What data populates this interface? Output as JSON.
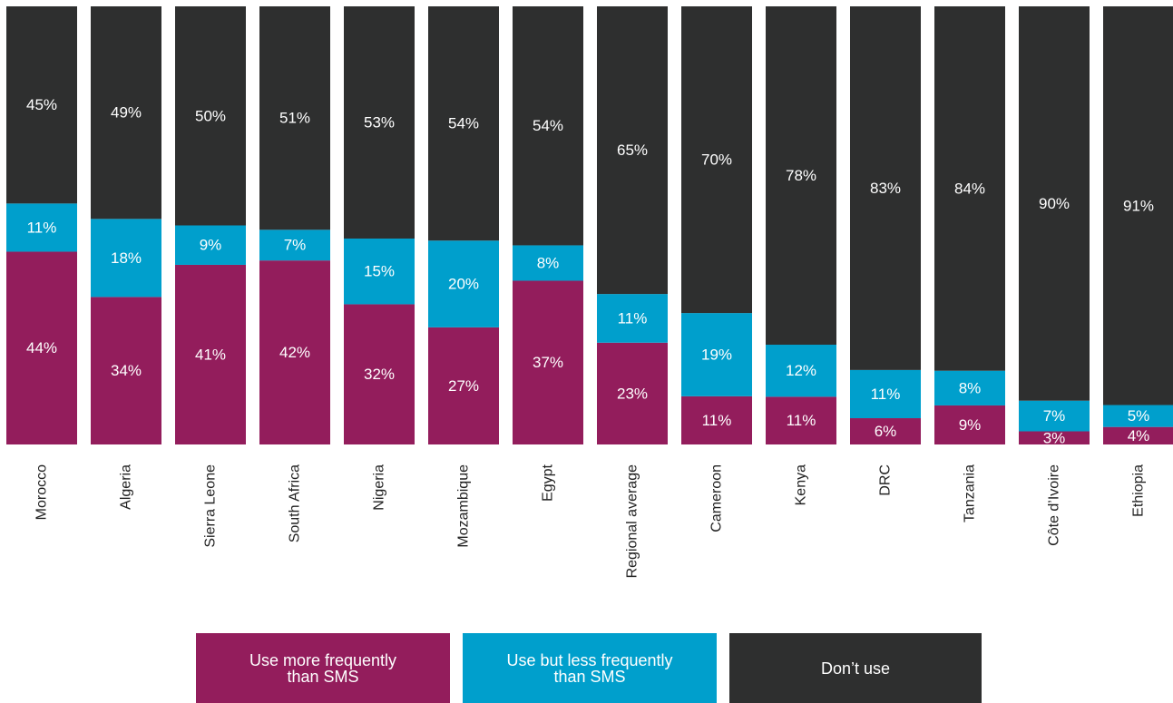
{
  "colors": {
    "more_frequent": "#931D5C",
    "less_frequent": "#009FCC",
    "dont_use": "#2E2F2F"
  },
  "legend": {
    "more_frequent_line1": "Use more frequently",
    "more_frequent_line2": "than SMS",
    "less_frequent_line1": "Use but less frequently",
    "less_frequent_line2": "than SMS",
    "dont_use": "Don’t use"
  },
  "chart_data": {
    "type": "bar",
    "stacked": true,
    "categories": [
      "Morocco",
      "Algeria",
      "Sierra Leone",
      "South Africa",
      "Nigeria",
      "Mozambique",
      "Egypt",
      "Regional average",
      "Cameroon",
      "Kenya",
      "DRC",
      "Tanzania",
      "Côte d’Ivoire",
      "Ethiopia"
    ],
    "series": [
      {
        "name": "Use more frequently than SMS",
        "values": [
          44,
          34,
          41,
          42,
          32,
          27,
          37,
          23,
          11,
          11,
          6,
          9,
          3,
          4
        ]
      },
      {
        "name": "Use but less frequently than SMS",
        "values": [
          11,
          18,
          9,
          7,
          15,
          20,
          8,
          11,
          19,
          12,
          11,
          8,
          7,
          5
        ]
      },
      {
        "name": "Don’t use",
        "values": [
          45,
          49,
          50,
          51,
          53,
          54,
          54,
          65,
          70,
          78,
          83,
          84,
          90,
          91
        ]
      }
    ],
    "value_labels": [
      [
        "44%",
        "34%",
        "41%",
        "42%",
        "32%",
        "27%",
        "37%",
        "23%",
        "11%",
        "11%",
        "6%",
        "9%",
        "3%",
        "4%"
      ],
      [
        "11%",
        "18%",
        "9%",
        "7%",
        "15%",
        "20%",
        "8%",
        "11%",
        "19%",
        "12%",
        "11%",
        "8%",
        "7%",
        "5%"
      ],
      [
        "45%",
        "49%",
        "50%",
        "51%",
        "53%",
        "54%",
        "54%",
        "65%",
        "70%",
        "78%",
        "83%",
        "84%",
        "90%",
        "91%"
      ]
    ],
    "ylim": [
      0,
      100
    ],
    "grid": false,
    "legend_position": "bottom"
  }
}
